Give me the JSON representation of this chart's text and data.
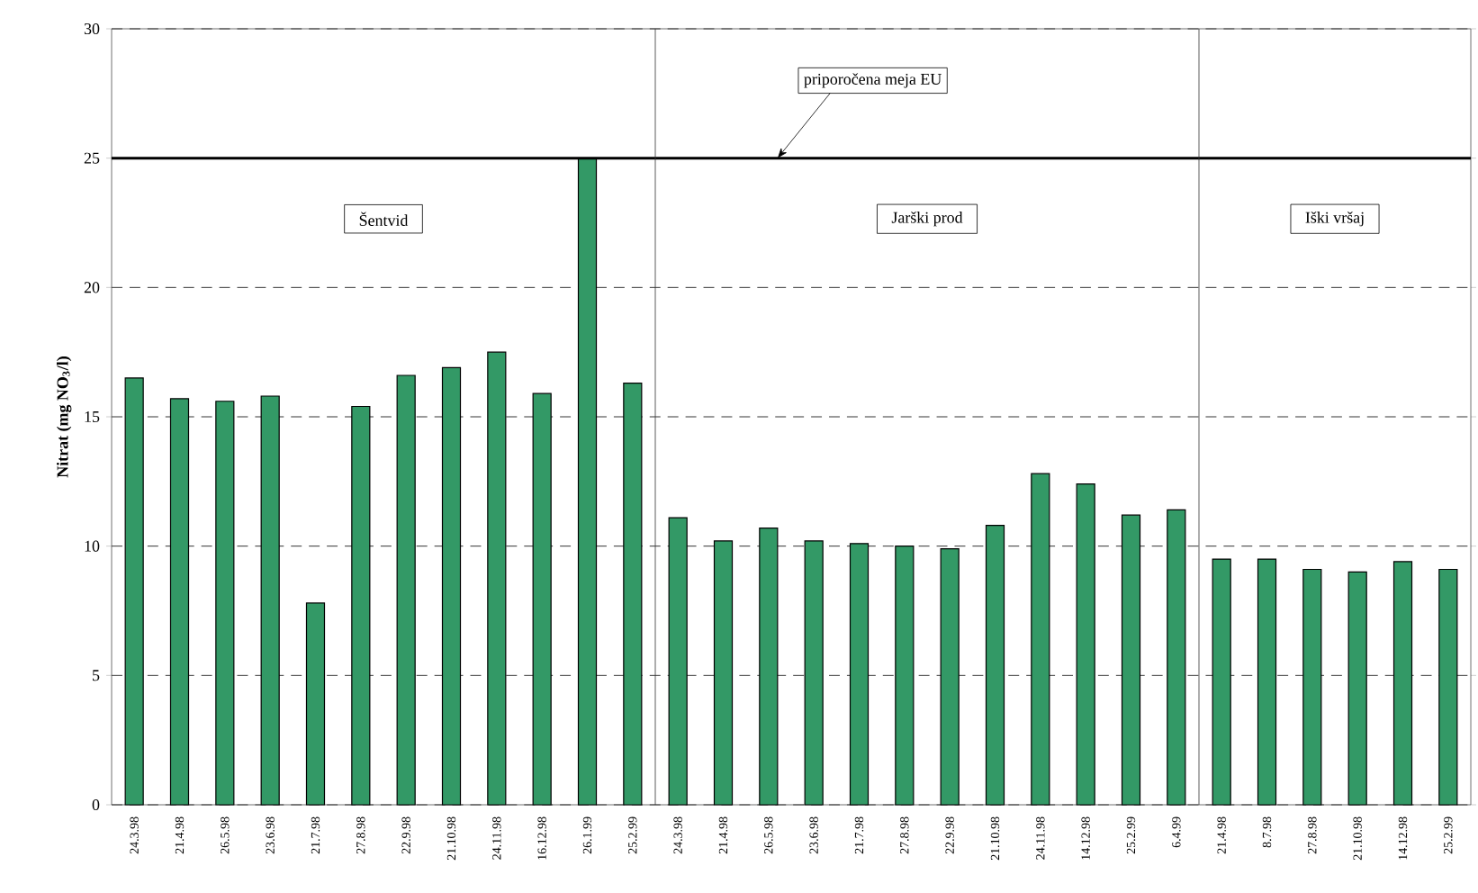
{
  "chart_data": {
    "type": "bar",
    "ylabel": "Nitrat (mg NO$_{3}$/l)",
    "categories": [
      "24.3.98",
      "21.4.98",
      "26.5.98",
      "23.6.98",
      "21.7.98",
      "27.8.98",
      "22.9.98",
      "21.10.98",
      "24.11.98",
      "16.12.98",
      "26.1.99",
      "25.2.99",
      "24.3.98",
      "21.4.98",
      "26.5.98",
      "23.6.98",
      "21.7.98",
      "27.8.98",
      "22.9.98",
      "21.10.98",
      "24.11.98",
      "14.12.98",
      "25.2.99",
      "6.4.99",
      "21.4.98",
      "8.7.98",
      "27.8.98",
      "21.10.98",
      "14.12.98",
      "25.2.99"
    ],
    "values": [
      16.5,
      15.7,
      15.6,
      15.8,
      7.8,
      15.4,
      16.6,
      16.9,
      17.5,
      15.9,
      25.0,
      16.3,
      11.1,
      10.2,
      10.7,
      10.2,
      10.1,
      10.0,
      9.9,
      10.8,
      12.8,
      12.4,
      11.2,
      11.4,
      9.5,
      9.5,
      9.1,
      9.0,
      9.4,
      9.1
    ],
    "color": "#339966",
    "ylim": [
      0,
      30
    ],
    "yticks": [
      0,
      5,
      10,
      15,
      20,
      25,
      30
    ],
    "grid": "y",
    "ref_lines": [
      {
        "axis": "y",
        "value": 25,
        "label": "priporočena meja EU",
        "color": "#000000"
      }
    ],
    "annotations": [
      "Šentvid",
      "Jarški prod",
      "Iški vršaj"
    ]
  }
}
